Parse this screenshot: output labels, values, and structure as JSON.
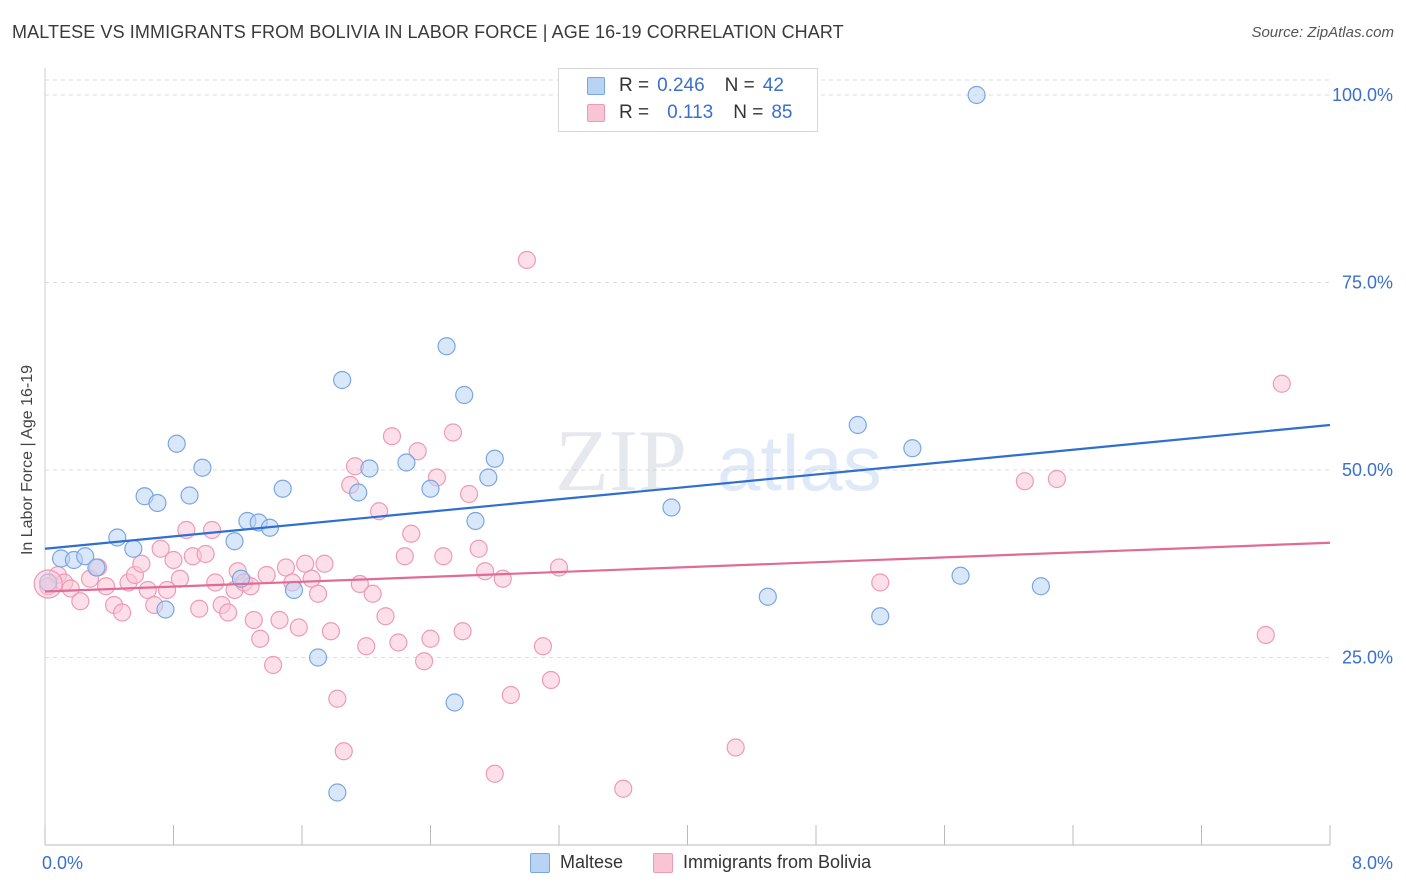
{
  "title": "MALTESE VS IMMIGRANTS FROM BOLIVIA IN LABOR FORCE | AGE 16-19 CORRELATION CHART",
  "source": "Source: ZipAtlas.com",
  "watermark": {
    "zip": "ZIP",
    "atlas": "atlas"
  },
  "legend": {
    "rows": [
      {
        "r_label": "R =",
        "r_value": "0.246",
        "n_label": "N =",
        "n_value": "42"
      },
      {
        "r_label": "R =",
        "r_value": "0.113",
        "n_label": "N =",
        "n_value": "85"
      }
    ]
  },
  "bottom_legend": [
    "Maltese",
    "Immigrants from Bolivia"
  ],
  "colors": {
    "blue_fill": "#b9d3f5",
    "blue_stroke": "#7aa6e0",
    "blue_line": "#2e6fd0",
    "pink_fill": "#f9c5d5",
    "pink_stroke": "#ee9ab5",
    "pink_line": "#e06b97",
    "tick_label": "#3a6fce",
    "grid": "#dddddd"
  },
  "chart_data": {
    "type": "scatter",
    "title": "MALTESE VS IMMIGRANTS FROM BOLIVIA IN LABOR FORCE | AGE 16-19 CORRELATION CHART",
    "xlabel": "",
    "ylabel": "In Labor Force | Age 16-19",
    "xlim": [
      0,
      8
    ],
    "ylim": [
      0,
      102
    ],
    "x_tick_labels": [
      "0.0%",
      "8.0%"
    ],
    "y_ticks": [
      25,
      50,
      75,
      100
    ],
    "y_tick_labels": [
      "25.0%",
      "50.0%",
      "75.0%",
      "100.0%"
    ],
    "grid": "horizontal dashed",
    "series": [
      {
        "name": "Maltese",
        "color": "blue",
        "trend": {
          "x": [
            0,
            8
          ],
          "y": [
            39.5,
            56.0
          ]
        },
        "points": [
          [
            0.02,
            35.0
          ],
          [
            0.1,
            38.2
          ],
          [
            0.18,
            38.0
          ],
          [
            0.25,
            38.5
          ],
          [
            0.32,
            37.0
          ],
          [
            0.45,
            41.0
          ],
          [
            0.55,
            39.5
          ],
          [
            0.62,
            46.5
          ],
          [
            0.7,
            45.6
          ],
          [
            0.75,
            31.4
          ],
          [
            0.82,
            53.5
          ],
          [
            0.9,
            46.6
          ],
          [
            0.98,
            50.3
          ],
          [
            1.18,
            40.5
          ],
          [
            1.22,
            35.5
          ],
          [
            1.26,
            43.2
          ],
          [
            1.33,
            43.0
          ],
          [
            1.4,
            42.3
          ],
          [
            1.48,
            47.5
          ],
          [
            1.55,
            34.0
          ],
          [
            1.7,
            25.0
          ],
          [
            1.82,
            7.0
          ],
          [
            1.85,
            62.0
          ],
          [
            1.95,
            47.0
          ],
          [
            2.02,
            50.2
          ],
          [
            2.25,
            51.0
          ],
          [
            2.4,
            47.5
          ],
          [
            2.5,
            66.5
          ],
          [
            2.55,
            19.0
          ],
          [
            2.61,
            60.0
          ],
          [
            2.68,
            43.2
          ],
          [
            2.76,
            49.0
          ],
          [
            2.8,
            51.5
          ],
          [
            3.9,
            45.0
          ],
          [
            4.5,
            33.1
          ],
          [
            5.06,
            56.0
          ],
          [
            5.2,
            30.5
          ],
          [
            5.4,
            52.9
          ],
          [
            5.7,
            35.9
          ],
          [
            5.8,
            100.0
          ],
          [
            6.2,
            34.5
          ]
        ]
      },
      {
        "name": "Immigrants from Bolivia",
        "color": "pink",
        "trend": {
          "x": [
            0,
            8
          ],
          "y": [
            33.8,
            40.3
          ]
        },
        "points": [
          [
            0.02,
            34.5
          ],
          [
            0.08,
            36.0
          ],
          [
            0.12,
            35.0
          ],
          [
            0.16,
            34.2
          ],
          [
            0.22,
            32.5
          ],
          [
            0.28,
            35.5
          ],
          [
            0.33,
            37.0
          ],
          [
            0.38,
            34.5
          ],
          [
            0.43,
            32.0
          ],
          [
            0.48,
            31.0
          ],
          [
            0.52,
            35.0
          ],
          [
            0.56,
            36.0
          ],
          [
            0.6,
            37.5
          ],
          [
            0.64,
            34.0
          ],
          [
            0.68,
            32.0
          ],
          [
            0.72,
            39.5
          ],
          [
            0.76,
            34.0
          ],
          [
            0.8,
            38.0
          ],
          [
            0.84,
            35.5
          ],
          [
            0.88,
            42.0
          ],
          [
            0.92,
            38.5
          ],
          [
            0.96,
            31.5
          ],
          [
            1.0,
            38.8
          ],
          [
            1.04,
            42.0
          ],
          [
            1.06,
            35.0
          ],
          [
            1.1,
            32.0
          ],
          [
            1.14,
            31.0
          ],
          [
            1.18,
            34.0
          ],
          [
            1.2,
            36.5
          ],
          [
            1.24,
            35.0
          ],
          [
            1.28,
            34.5
          ],
          [
            1.3,
            30.0
          ],
          [
            1.34,
            27.5
          ],
          [
            1.38,
            36.0
          ],
          [
            1.42,
            24.0
          ],
          [
            1.46,
            30.0
          ],
          [
            1.5,
            37.0
          ],
          [
            1.54,
            35.0
          ],
          [
            1.58,
            29.0
          ],
          [
            1.62,
            37.5
          ],
          [
            1.66,
            35.5
          ],
          [
            1.7,
            33.5
          ],
          [
            1.74,
            37.5
          ],
          [
            1.78,
            28.5
          ],
          [
            1.82,
            19.5
          ],
          [
            1.86,
            12.5
          ],
          [
            1.9,
            48.0
          ],
          [
            1.93,
            50.5
          ],
          [
            1.96,
            34.8
          ],
          [
            2.0,
            26.5
          ],
          [
            2.04,
            33.5
          ],
          [
            2.08,
            44.5
          ],
          [
            2.12,
            30.5
          ],
          [
            2.16,
            54.5
          ],
          [
            2.2,
            27.0
          ],
          [
            2.24,
            38.5
          ],
          [
            2.28,
            41.5
          ],
          [
            2.32,
            52.5
          ],
          [
            2.36,
            24.5
          ],
          [
            2.4,
            27.5
          ],
          [
            2.44,
            49.0
          ],
          [
            2.48,
            38.5
          ],
          [
            2.54,
            55.0
          ],
          [
            2.6,
            28.5
          ],
          [
            2.64,
            46.8
          ],
          [
            2.7,
            39.5
          ],
          [
            2.74,
            36.5
          ],
          [
            2.8,
            9.5
          ],
          [
            2.85,
            35.5
          ],
          [
            2.9,
            20.0
          ],
          [
            3.0,
            78.0
          ],
          [
            3.1,
            26.5
          ],
          [
            3.15,
            22.0
          ],
          [
            3.2,
            37.0
          ],
          [
            3.6,
            7.5
          ],
          [
            4.3,
            13.0
          ],
          [
            5.2,
            35.0
          ],
          [
            6.1,
            48.5
          ],
          [
            6.3,
            48.8
          ],
          [
            7.6,
            28.0
          ],
          [
            7.7,
            61.5
          ]
        ]
      }
    ]
  }
}
